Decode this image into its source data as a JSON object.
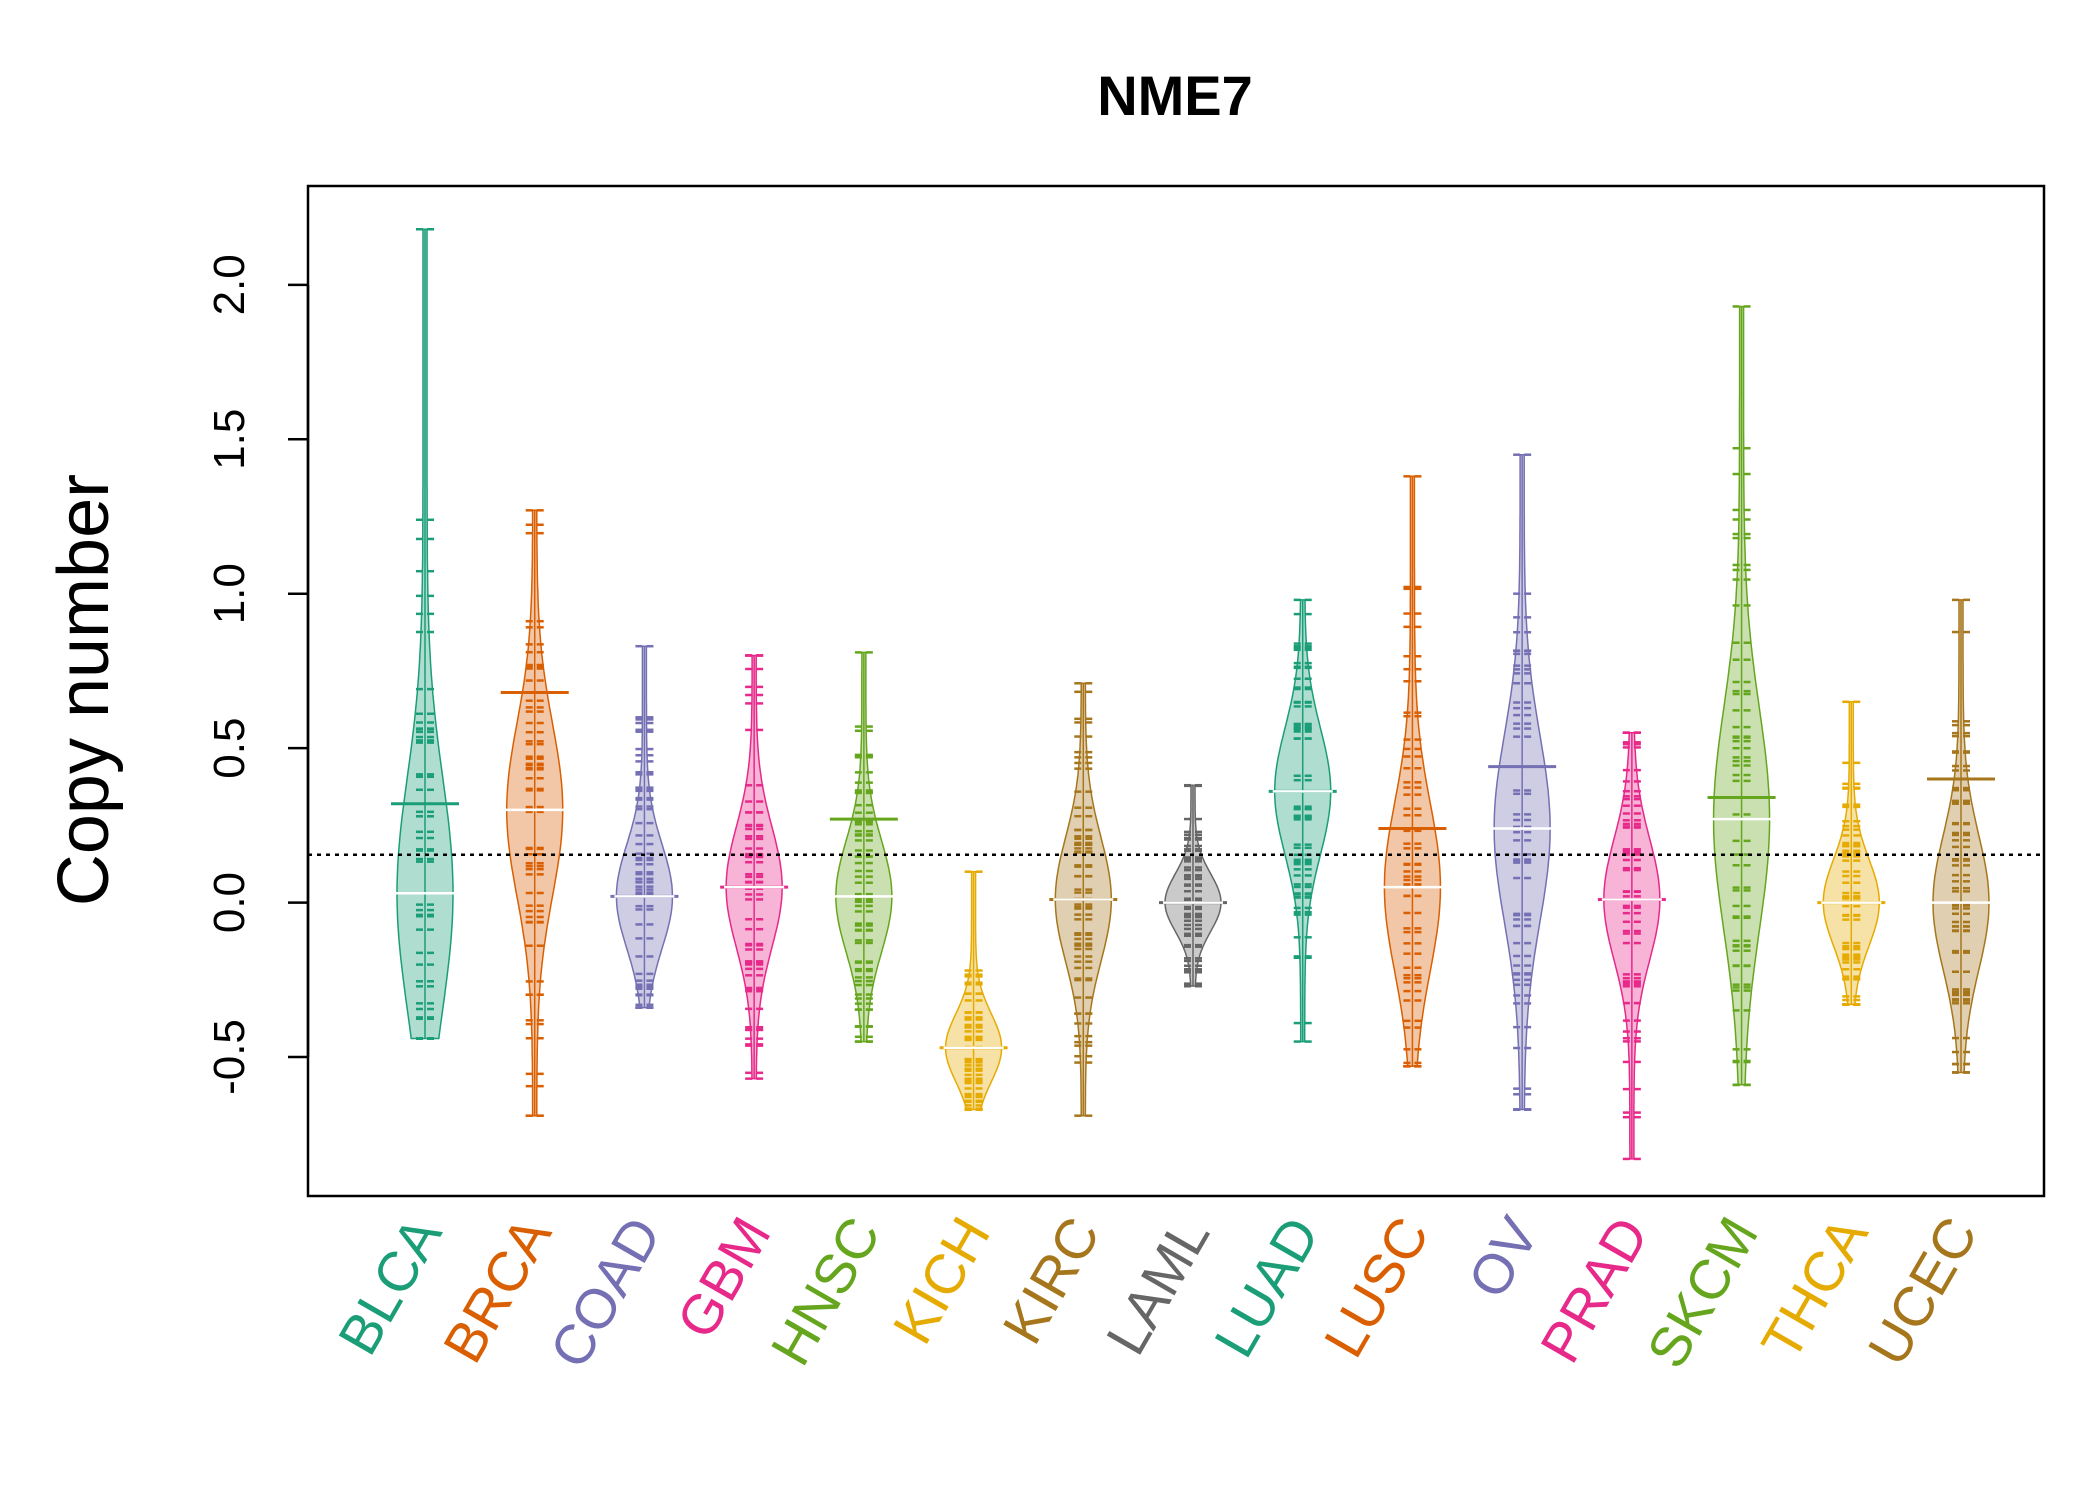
{
  "chart_data": {
    "type": "beanplot",
    "title": "NME7",
    "ylabel": "Copy number",
    "xlabel": "",
    "ylim": [
      -0.95,
      2.32
    ],
    "yticks": [
      -0.5,
      0.0,
      0.5,
      1.0,
      1.5,
      2.0
    ],
    "ytick_labels": [
      "-0.5",
      "0.0",
      "0.5",
      "1.0",
      "1.5",
      "2.0"
    ],
    "reference_line": 0.155,
    "categories": [
      "BLCA",
      "BRCA",
      "COAD",
      "GBM",
      "HNSC",
      "KICH",
      "KIRC",
      "LAML",
      "LUAD",
      "LUSC",
      "OV",
      "PRAD",
      "SKCM",
      "THCA",
      "UCEC"
    ],
    "colors": [
      "#1b9e77",
      "#d95f02",
      "#7570b3",
      "#e7298a",
      "#66a61e",
      "#e6ab02",
      "#a6761d",
      "#666666",
      "#1b9e77",
      "#d95f02",
      "#7570b3",
      "#e7298a",
      "#66a61e",
      "#e6ab02",
      "#a6761d"
    ],
    "series": [
      {
        "name": "BLCA",
        "min": -0.44,
        "max": 2.18,
        "median": 0.03,
        "mean": 0.32
      },
      {
        "name": "BRCA",
        "min": -0.69,
        "max": 1.27,
        "median": 0.3,
        "mean": 0.68
      },
      {
        "name": "COAD",
        "min": -0.34,
        "max": 0.83,
        "median": 0.02,
        "mean": 0.02
      },
      {
        "name": "GBM",
        "min": -0.57,
        "max": 0.8,
        "median": 0.05,
        "mean": 0.05
      },
      {
        "name": "HNSC",
        "min": -0.45,
        "max": 0.81,
        "median": 0.02,
        "mean": 0.27
      },
      {
        "name": "KICH",
        "min": -0.67,
        "max": 0.1,
        "median": -0.47,
        "mean": -0.47
      },
      {
        "name": "KIRC",
        "min": -0.69,
        "max": 0.71,
        "median": 0.01,
        "mean": 0.01
      },
      {
        "name": "LAML",
        "min": -0.27,
        "max": 0.38,
        "median": 0.0,
        "mean": 0.0
      },
      {
        "name": "LUAD",
        "min": -0.45,
        "max": 0.98,
        "median": 0.36,
        "mean": 0.36
      },
      {
        "name": "LUSC",
        "min": -0.53,
        "max": 1.38,
        "median": 0.05,
        "mean": 0.24
      },
      {
        "name": "OV",
        "min": -0.67,
        "max": 1.45,
        "median": 0.24,
        "mean": 0.44
      },
      {
        "name": "PRAD",
        "min": -0.83,
        "max": 0.55,
        "median": 0.01,
        "mean": 0.01
      },
      {
        "name": "SKCM",
        "min": -0.59,
        "max": 1.93,
        "median": 0.27,
        "mean": 0.34
      },
      {
        "name": "THCA",
        "min": -0.33,
        "max": 0.65,
        "median": 0.0,
        "mean": 0.0
      },
      {
        "name": "UCEC",
        "min": -0.55,
        "max": 0.98,
        "median": 0.0,
        "mean": 0.4
      }
    ]
  }
}
